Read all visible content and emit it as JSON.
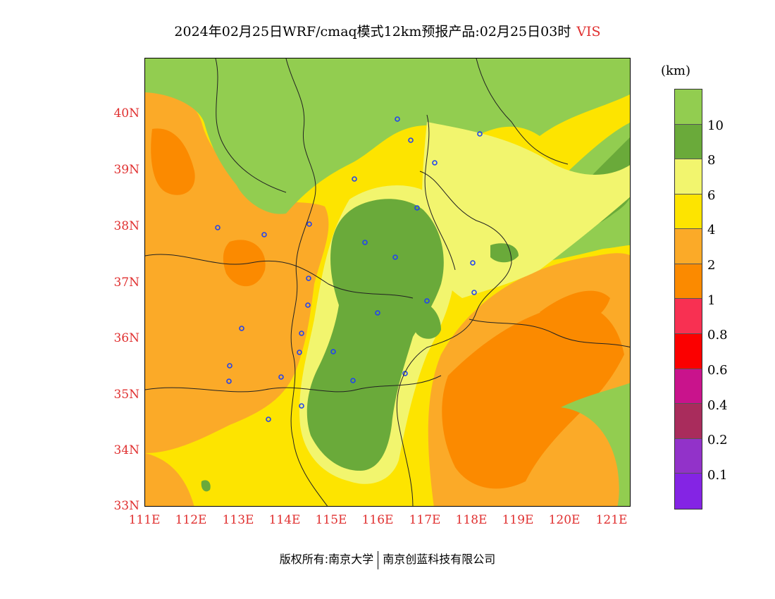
{
  "title": {
    "main": "2024年02月25日WRF/cmaq模式12km预报产品:02月25日03时",
    "variable": "VIS"
  },
  "axes": {
    "lat_labels": [
      "40N",
      "39N",
      "38N",
      "37N",
      "36N",
      "35N",
      "34N",
      "33N"
    ],
    "lon_labels": [
      "111E",
      "112E",
      "113E",
      "114E",
      "115E",
      "116E",
      "117E",
      "118E",
      "119E",
      "120E",
      "121E"
    ]
  },
  "legend": {
    "unit": "(km)",
    "labels": [
      "10",
      "8",
      "6",
      "4",
      "2",
      "1",
      "0.8",
      "0.6",
      "0.4",
      "0.2",
      "0.1"
    ],
    "colors": [
      "#92cd50",
      "#6aaa3a",
      "#f2f56e",
      "#fde400",
      "#fbaa28",
      "#fb8a00",
      "#f83052",
      "#fb0000",
      "#c9138c",
      "#a92c5c",
      "#9232c9",
      "#8424e4"
    ]
  },
  "footer": {
    "left": "版权所有:南京大学",
    "right": "南京创蓝科技有限公司"
  }
}
